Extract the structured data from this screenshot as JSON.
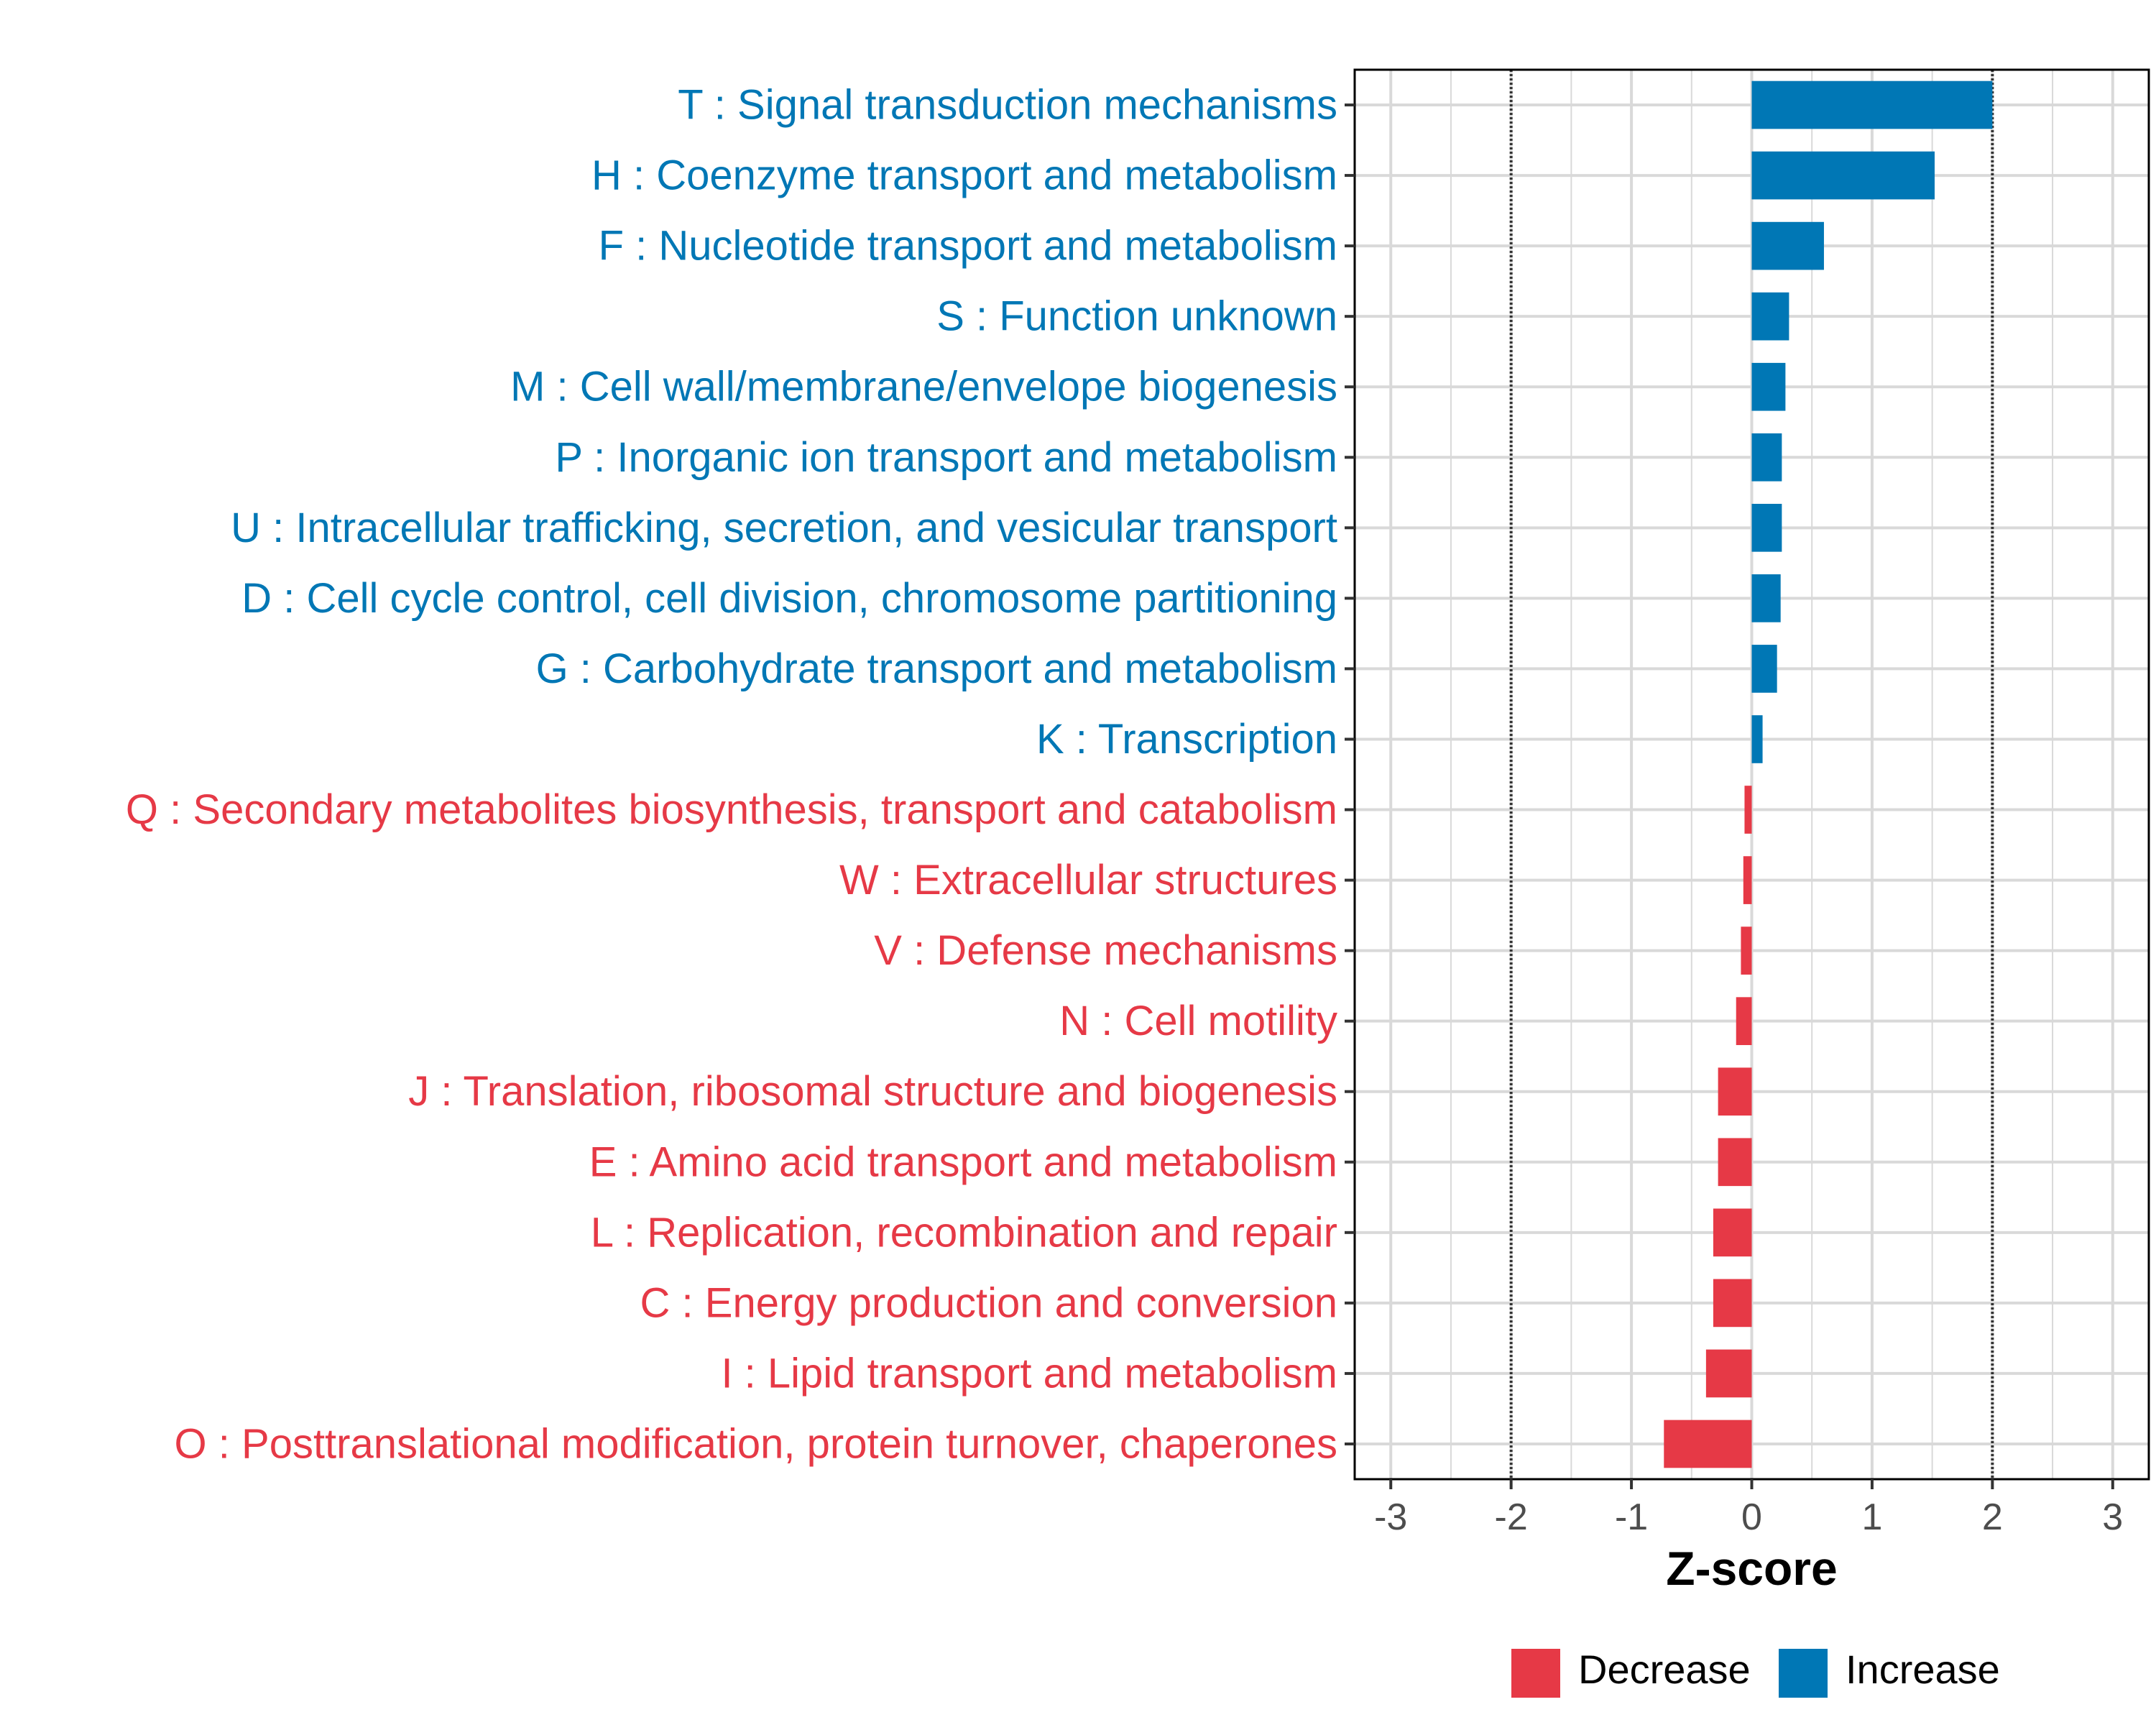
{
  "colors": {
    "increase": "#0077b5",
    "decrease": "#e63946",
    "grid": "#d9d9d9",
    "panel_border": "#000000",
    "threshold": "#333333"
  },
  "chart_data": {
    "type": "bar",
    "orientation": "horizontal",
    "title": "",
    "xlabel": "Z-score",
    "ylabel": "",
    "xlim": [
      -3.3,
      3.3
    ],
    "xticks": [
      -3,
      -2,
      -1,
      0,
      1,
      2,
      3
    ],
    "thresholds": [
      -2,
      2
    ],
    "grid": true,
    "legend_position": "bottom",
    "legend": [
      {
        "key": "decrease",
        "label": "Decrease"
      },
      {
        "key": "increase",
        "label": "Increase"
      }
    ],
    "categories": [
      "T : Signal transduction mechanisms",
      "H : Coenzyme transport and metabolism",
      "F : Nucleotide transport and metabolism",
      "S : Function unknown",
      "M : Cell wall/membrane/envelope biogenesis",
      "P : Inorganic ion transport and metabolism",
      "U : Intracellular trafficking, secretion, and vesicular transport",
      "D : Cell cycle control, cell division, chromosome partitioning",
      "G : Carbohydrate transport and metabolism",
      "K : Transcription",
      "Q : Secondary metabolites biosynthesis, transport and catabolism",
      "W : Extracellular structures",
      "V : Defense mechanisms",
      "N : Cell motility",
      "J : Translation, ribosomal structure and biogenesis",
      "E : Amino acid transport and metabolism",
      "L : Replication, recombination and repair",
      "C : Energy production and conversion",
      "I : Lipid transport and metabolism",
      "O : Posttranslational modification, protein turnover, chaperones"
    ],
    "values": [
      2.0,
      1.52,
      0.6,
      0.31,
      0.28,
      0.25,
      0.25,
      0.24,
      0.21,
      0.09,
      -0.06,
      -0.07,
      -0.09,
      -0.13,
      -0.28,
      -0.28,
      -0.32,
      -0.32,
      -0.38,
      -0.73
    ],
    "direction": [
      "increase",
      "increase",
      "increase",
      "increase",
      "increase",
      "increase",
      "increase",
      "increase",
      "increase",
      "increase",
      "decrease",
      "decrease",
      "decrease",
      "decrease",
      "decrease",
      "decrease",
      "decrease",
      "decrease",
      "decrease",
      "decrease"
    ]
  }
}
